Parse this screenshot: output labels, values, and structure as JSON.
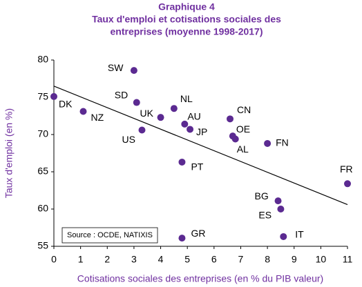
{
  "chart_data": {
    "type": "scatter",
    "title": [
      "Graphique 4",
      "Taux d'emploi et cotisations sociales des",
      "entreprises (moyenne 1998-2017)"
    ],
    "x_label": "Cotisations sociales des entreprises (en % du PIB valeur)",
    "y_label": "Taux d'emploi (en %)",
    "annotation": "Source : OCDE, NATIXIS",
    "color": "#5b2a91",
    "labels": [
      "SW",
      "DK",
      "NZ",
      "SD",
      "NL",
      "UK",
      "AU",
      "CN",
      "US",
      "JP",
      "OE",
      "AL",
      "FN",
      "PT",
      "FR",
      "BG",
      "ES",
      "GR",
      "IT"
    ],
    "x": [
      3.0,
      0.0,
      1.1,
      3.1,
      4.5,
      4.0,
      4.9,
      6.6,
      3.3,
      5.1,
      6.7,
      6.8,
      8.0,
      4.8,
      11.0,
      8.4,
      8.5,
      4.8,
      8.6
    ],
    "values": [
      78.6,
      75.1,
      73.1,
      74.3,
      73.5,
      72.3,
      71.4,
      72.1,
      70.6,
      70.7,
      69.8,
      69.4,
      68.8,
      66.3,
      63.4,
      61.1,
      60.0,
      56.1,
      56.3
    ],
    "trend": {
      "x": [
        0,
        11
      ],
      "y": [
        76.5,
        60.6
      ]
    },
    "xlim": [
      0,
      11
    ],
    "xticks": [
      0,
      1,
      2,
      3,
      4,
      5,
      6,
      7,
      8,
      9,
      10,
      11
    ],
    "ylim": [
      55,
      80
    ],
    "yticks": [
      55,
      60,
      65,
      70,
      75,
      80
    ]
  }
}
